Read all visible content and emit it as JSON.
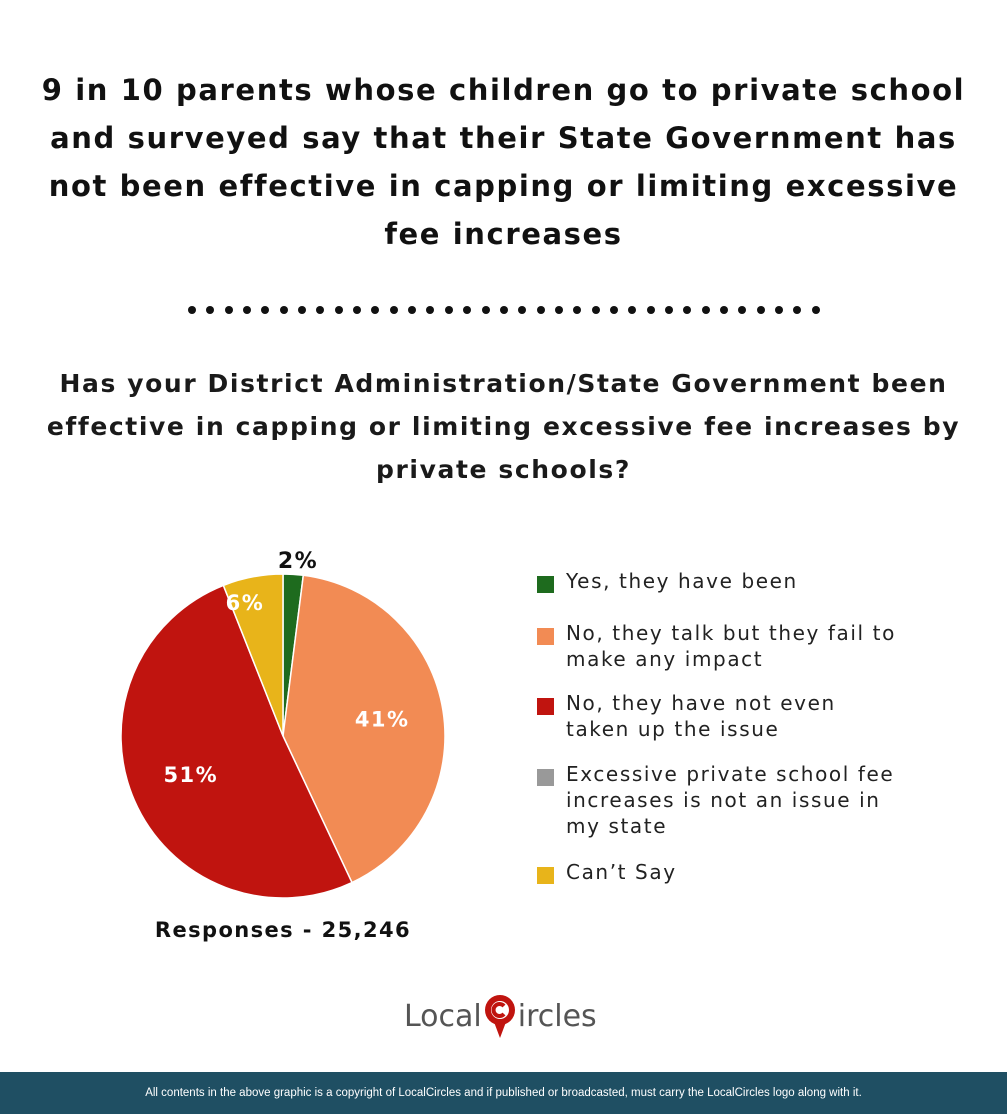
{
  "headline": "9 in 10 parents whose children go to private school and surveyed say that their State Government has not been effective in capping or limiting excessive fee increases",
  "question": "Has your District Administration/State Government been effective in capping or limiting excessive fee increases by private schools?",
  "responses": "Responses - 25,246",
  "logo": {
    "part1": "Local",
    "part2": "ircles"
  },
  "footer": "All contents in the above graphic is a copyright of LocalCircles and if published or broadcasted, must carry the LocalCircles logo along with it.",
  "chart_data": {
    "type": "pie",
    "title": "Has your District Administration/State Government been effective in capping or limiting excessive fee increases by private schools?",
    "categories": [
      "Yes, they have been",
      "No, they talk but they fail to make any impact",
      "No, they have not even taken up the issue",
      "Excessive private school fee increases is not an issue in my state",
      "Can’t Say"
    ],
    "values": [
      2,
      41,
      51,
      0,
      6
    ],
    "value_labels": [
      "2%",
      "41%",
      "51%",
      "",
      "6%"
    ],
    "colors": [
      "#1e6b1e",
      "#f28b54",
      "#c0140f",
      "#999999",
      "#e8b41a"
    ],
    "legend_position": "right"
  }
}
